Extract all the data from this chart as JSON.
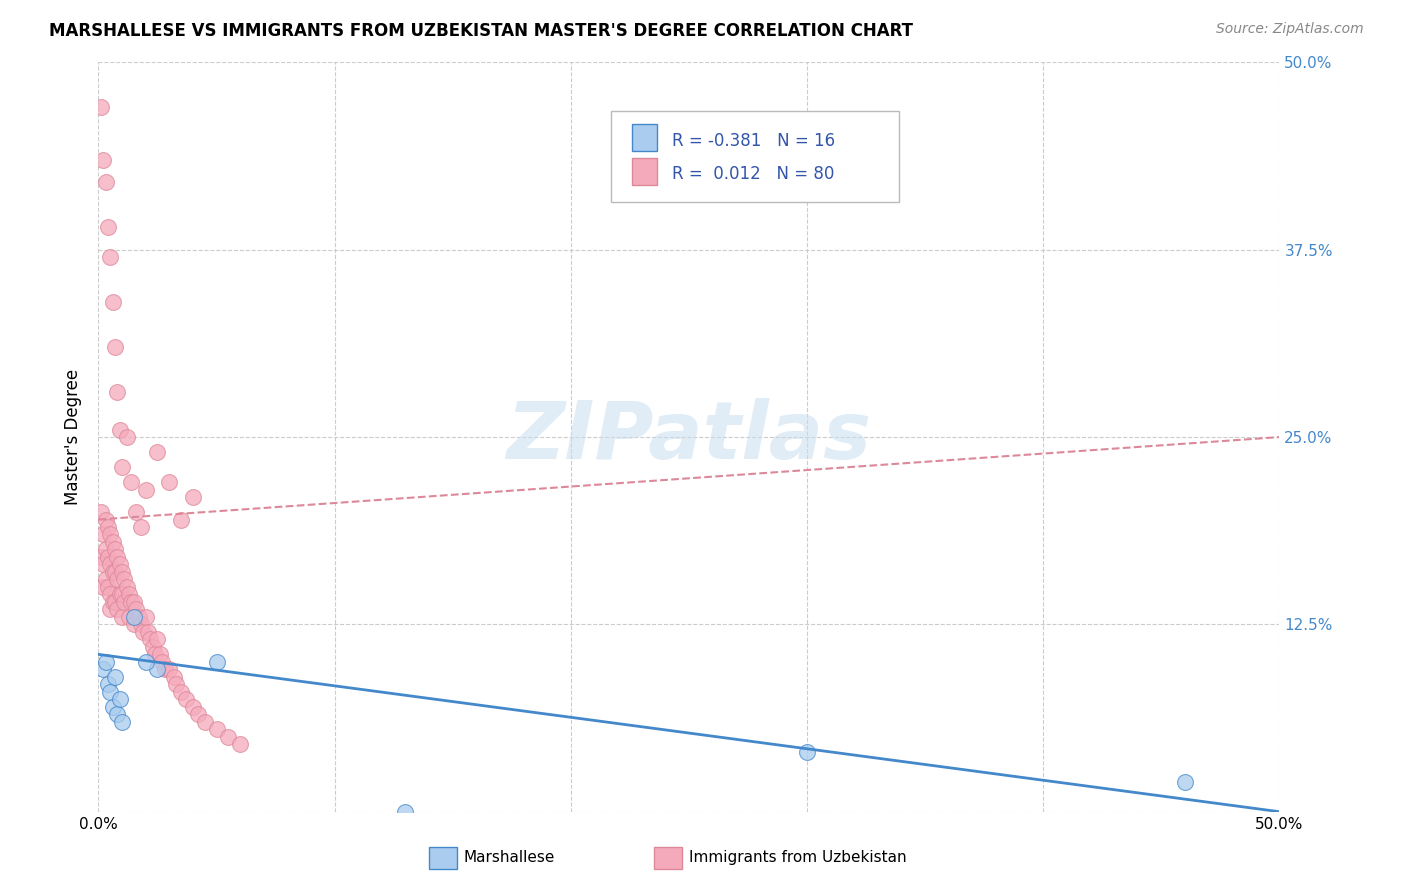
{
  "title": "MARSHALLESE VS IMMIGRANTS FROM UZBEKISTAN MASTER'S DEGREE CORRELATION CHART",
  "source": "Source: ZipAtlas.com",
  "ylabel": "Master's Degree",
  "xlim": [
    0.0,
    0.5
  ],
  "ylim": [
    0.0,
    0.5
  ],
  "xticks": [
    0.0,
    0.1,
    0.2,
    0.3,
    0.4,
    0.5
  ],
  "xtick_labels": [
    "0.0%",
    "",
    "",
    "",
    "",
    "50.0%"
  ],
  "yticks": [
    0.0,
    0.125,
    0.25,
    0.375,
    0.5
  ],
  "ytick_labels_right": [
    "",
    "12.5%",
    "25.0%",
    "37.5%",
    "50.0%"
  ],
  "r_marshallese": -0.381,
  "n_marshallese": 16,
  "r_uzbekistan": 0.012,
  "n_uzbekistan": 80,
  "marshallese_color": "#aaccee",
  "uzbekistan_color": "#f5aabb",
  "marshallese_line_color": "#4488cc",
  "uzbekistan_line_color": "#dd8899",
  "watermark": "ZIPatlas",
  "background_color": "#ffffff",
  "grid_color": "#cccccc",
  "marshallese_x": [
    0.002,
    0.003,
    0.004,
    0.005,
    0.006,
    0.007,
    0.008,
    0.009,
    0.01,
    0.015,
    0.025,
    0.02,
    0.05,
    0.3,
    0.46,
    0.13
  ],
  "marshallese_y": [
    0.095,
    0.1,
    0.085,
    0.08,
    0.07,
    0.09,
    0.065,
    0.075,
    0.06,
    0.13,
    0.095,
    0.1,
    0.1,
    0.04,
    0.02,
    0.0
  ],
  "uzbekistan_x": [
    0.001,
    0.001,
    0.002,
    0.002,
    0.002,
    0.003,
    0.003,
    0.003,
    0.004,
    0.004,
    0.004,
    0.005,
    0.005,
    0.005,
    0.005,
    0.006,
    0.006,
    0.006,
    0.007,
    0.007,
    0.007,
    0.008,
    0.008,
    0.008,
    0.009,
    0.009,
    0.01,
    0.01,
    0.01,
    0.011,
    0.011,
    0.012,
    0.013,
    0.013,
    0.014,
    0.015,
    0.015,
    0.016,
    0.017,
    0.018,
    0.019,
    0.02,
    0.021,
    0.022,
    0.023,
    0.024,
    0.025,
    0.026,
    0.027,
    0.028,
    0.03,
    0.032,
    0.033,
    0.035,
    0.037,
    0.04,
    0.042,
    0.045,
    0.05,
    0.055,
    0.001,
    0.002,
    0.003,
    0.004,
    0.005,
    0.006,
    0.007,
    0.008,
    0.009,
    0.01,
    0.012,
    0.014,
    0.016,
    0.018,
    0.02,
    0.025,
    0.03,
    0.035,
    0.04,
    0.06
  ],
  "uzbekistan_y": [
    0.2,
    0.17,
    0.185,
    0.165,
    0.15,
    0.195,
    0.175,
    0.155,
    0.19,
    0.17,
    0.15,
    0.185,
    0.165,
    0.145,
    0.135,
    0.18,
    0.16,
    0.14,
    0.175,
    0.16,
    0.14,
    0.17,
    0.155,
    0.135,
    0.165,
    0.145,
    0.16,
    0.145,
    0.13,
    0.155,
    0.14,
    0.15,
    0.145,
    0.13,
    0.14,
    0.14,
    0.125,
    0.135,
    0.13,
    0.125,
    0.12,
    0.13,
    0.12,
    0.115,
    0.11,
    0.105,
    0.115,
    0.105,
    0.1,
    0.095,
    0.095,
    0.09,
    0.085,
    0.08,
    0.075,
    0.07,
    0.065,
    0.06,
    0.055,
    0.05,
    0.47,
    0.435,
    0.42,
    0.39,
    0.37,
    0.34,
    0.31,
    0.28,
    0.255,
    0.23,
    0.25,
    0.22,
    0.2,
    0.19,
    0.215,
    0.24,
    0.22,
    0.195,
    0.21,
    0.045
  ],
  "uzbek_trend_x": [
    0.0,
    0.5
  ],
  "uzbek_trend_y": [
    0.195,
    0.25
  ],
  "marsh_trend_x": [
    0.0,
    0.5
  ],
  "marsh_trend_y": [
    0.105,
    0.0
  ]
}
